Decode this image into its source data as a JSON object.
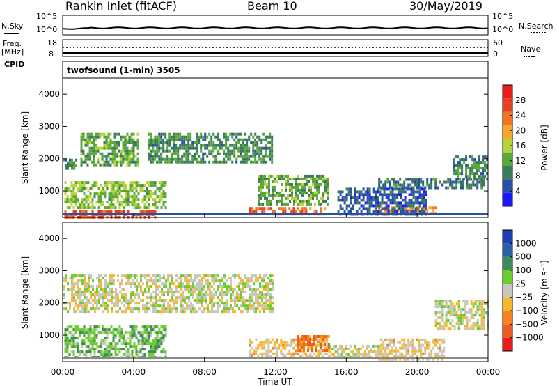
{
  "header": {
    "station": "Rankin Inlet (fitACF)",
    "beam": "Beam 10",
    "date": "30/May/2019"
  },
  "strip_nsky": {
    "left_label": "N.Sky",
    "left_ticks": [
      "10^5",
      "10^0"
    ],
    "right_label": "N.Search",
    "right_ticks": [
      "10^5",
      "10^0"
    ]
  },
  "strip_freq": {
    "left_label_1": "Freq.",
    "left_label_2": "[MHz]",
    "left_ticks": [
      "18",
      "8"
    ],
    "right_label": "Nave",
    "right_ticks": [
      "60",
      "0"
    ]
  },
  "strip_cpid": {
    "label": "CPID",
    "text": "twofsound (1-min) 3505"
  },
  "colors": {
    "power": [
      "#1a1aff",
      "#2a4fa8",
      "#3c7a5a",
      "#59a83a",
      "#b8d23a",
      "#f7a82a",
      "#f27422",
      "#e8401f",
      "#ee1b1b"
    ],
    "velocity": [
      "#ee1b1b",
      "#f05a1e",
      "#f7831f",
      "#f6b72c",
      "#c7c7bd",
      "#6ccd2e",
      "#3e8b5a",
      "#2c5fa6",
      "#1f3fb4"
    ]
  },
  "chart_data": [
    {
      "type": "heatmap",
      "name": "power",
      "xlabel": "",
      "ylabel": "Slant Range [km]",
      "x_range_hours": [
        0,
        24
      ],
      "y_range_km": [
        180,
        4500
      ],
      "y_ticks": [
        "1000",
        "2000",
        "3000",
        "4000"
      ],
      "colorbar": {
        "label": "Power [dB]",
        "ticks": [
          "28",
          "24",
          "20",
          "16",
          "12",
          "8",
          "4"
        ],
        "range": [
          0,
          32
        ]
      },
      "regions": [
        {
          "t0": 0.1,
          "t1": 5.2,
          "r0": 200,
          "r1": 400,
          "value": 26
        },
        {
          "t0": 10.5,
          "t1": 14.8,
          "r0": 300,
          "r1": 500,
          "value": 24
        },
        {
          "t0": 17.8,
          "t1": 21.0,
          "r0": 300,
          "r1": 520,
          "value": 22
        },
        {
          "t0": 0.1,
          "t1": 5.8,
          "r0": 500,
          "r1": 1300,
          "value": 14
        },
        {
          "t0": 11.0,
          "t1": 15.0,
          "r0": 600,
          "r1": 1500,
          "value": 12
        },
        {
          "t0": 1.0,
          "t1": 4.2,
          "r0": 1800,
          "r1": 2800,
          "value": 12
        },
        {
          "t0": 4.8,
          "t1": 11.8,
          "r0": 1900,
          "r1": 2800,
          "value": 10
        },
        {
          "t0": 0.0,
          "t1": 0.8,
          "r0": 1700,
          "r1": 2000,
          "value": 10
        },
        {
          "t0": 17.8,
          "t1": 23.8,
          "r0": 1100,
          "r1": 1400,
          "value": 8
        },
        {
          "t0": 22.0,
          "t1": 24.0,
          "r0": 1400,
          "r1": 2100,
          "value": 10
        },
        {
          "t0": 15.5,
          "t1": 20.5,
          "r0": 300,
          "r1": 1100,
          "value": 6
        }
      ]
    },
    {
      "type": "heatmap",
      "name": "velocity",
      "xlabel": "Time UT",
      "ylabel": "Slant Range [km]",
      "x_ticks": [
        "00:00",
        "04:00",
        "08:00",
        "12:00",
        "16:00",
        "20:00",
        "00:00"
      ],
      "x_range_hours": [
        0,
        24
      ],
      "y_range_km": [
        180,
        4500
      ],
      "y_ticks": [
        "1000",
        "2000",
        "3000",
        "4000"
      ],
      "colorbar": {
        "label": "Velocity [m s⁻¹]",
        "ticks": [
          "1000",
          "500",
          "100",
          "25",
          "−25",
          "−100",
          "−500",
          "−1000"
        ],
        "range": [
          -1200,
          1200
        ]
      },
      "regions": [
        {
          "t0": 0.1,
          "t1": 5.8,
          "r0": 300,
          "r1": 1300,
          "value": 300
        },
        {
          "t0": 0.0,
          "t1": 11.8,
          "r0": 1700,
          "r1": 2900,
          "value": 0
        },
        {
          "t0": 10.5,
          "t1": 15.0,
          "r0": 300,
          "r1": 900,
          "value": -150
        },
        {
          "t0": 13.2,
          "t1": 15.0,
          "r0": 500,
          "r1": 1000,
          "value": -600
        },
        {
          "t0": 17.8,
          "t1": 21.5,
          "r0": 250,
          "r1": 900,
          "value": -150
        },
        {
          "t0": 21.0,
          "t1": 24.0,
          "r0": 1200,
          "r1": 2100,
          "value": 0
        },
        {
          "t0": 15.0,
          "t1": 18.0,
          "r0": 300,
          "r1": 700,
          "value": 0
        }
      ]
    }
  ]
}
